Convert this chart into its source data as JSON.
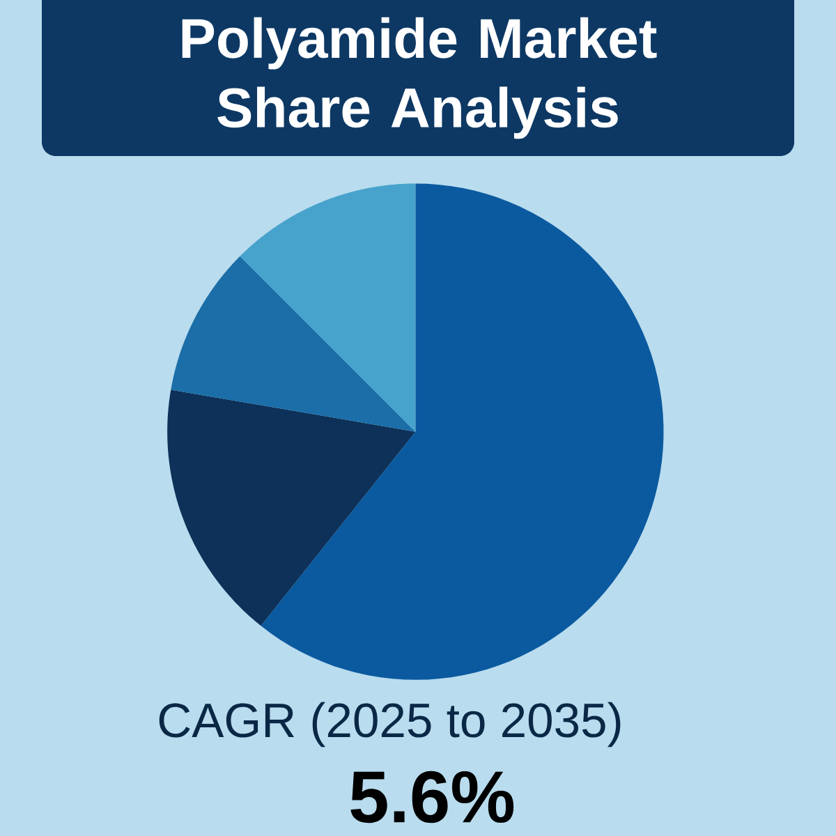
{
  "chart_data": {
    "type": "pie",
    "title": "Polyamide Market Share Analysis",
    "categories": [
      null,
      null,
      null,
      null
    ],
    "values": [
      60.7,
      17.0,
      9.8,
      12.5
    ],
    "colors": [
      "#0b5aa0",
      "#0d3158",
      "#1b6ea8",
      "#47a3cc"
    ],
    "annotations": [
      "CAGR (2025 to 2035)",
      "5.6%"
    ]
  }
}
